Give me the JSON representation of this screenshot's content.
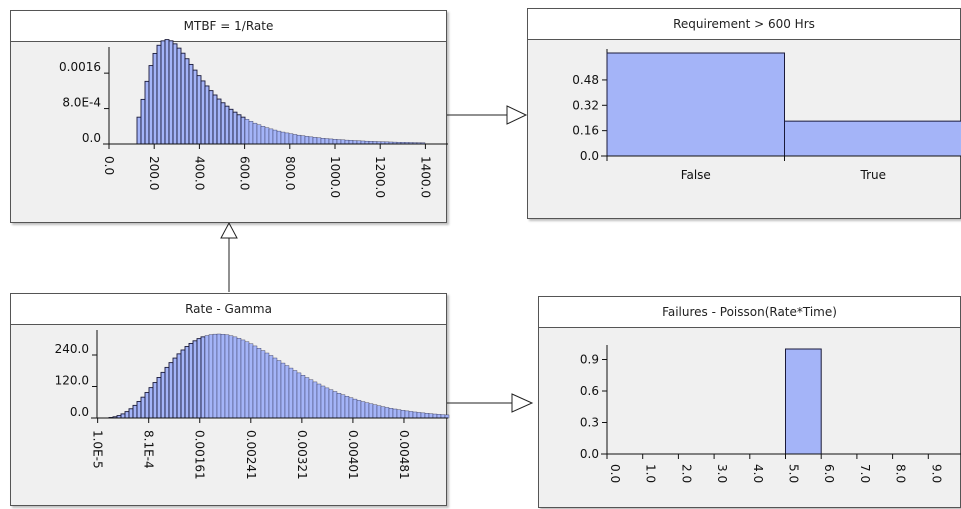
{
  "colors": {
    "bar_fill": "#a4b4f8",
    "bar_stroke": "#1a1a3a",
    "panel_bg": "#f0f0f0",
    "border": "#555555"
  },
  "nodes": {
    "mtbf": {
      "title": "MTBF = 1/Rate"
    },
    "requirement": {
      "title": "Requirement > 600 Hrs"
    },
    "rate": {
      "title": "Rate - Gamma"
    },
    "failures": {
      "title": "Failures - Poisson(Rate*Time)"
    }
  },
  "chart_data": [
    {
      "id": "mtbf",
      "type": "bar",
      "title": "MTBF = 1/Rate",
      "distribution": "inverse-gamma-like histogram",
      "x_range": [
        0,
        1500
      ],
      "y_range": [
        0,
        0.0021
      ],
      "y_ticks": [
        "0.0016",
        "8.0E-4",
        "0.0"
      ],
      "y_tick_values": [
        0.0016,
        0.0008,
        0.0
      ],
      "x_ticks": [
        "0.0",
        "200.0",
        "400.0",
        "600.0",
        "800.0",
        "1000.0",
        "1200.0",
        "1400.0"
      ],
      "x_tick_values": [
        0,
        200,
        400,
        600,
        800,
        1000,
        1200,
        1400
      ],
      "peak": {
        "x": 320,
        "y": 0.0021
      },
      "threshold": 600
    },
    {
      "id": "requirement",
      "type": "bar",
      "title": "Requirement > 600 Hrs",
      "categories": [
        "False",
        "True"
      ],
      "values": [
        0.65,
        0.22
      ],
      "y_range": [
        0,
        0.65
      ],
      "y_ticks": [
        "0.48",
        "0.32",
        "0.16",
        "0.0"
      ],
      "y_tick_values": [
        0.48,
        0.32,
        0.16,
        0.0
      ]
    },
    {
      "id": "rate",
      "type": "bar",
      "title": "Rate - Gamma",
      "distribution": "gamma histogram",
      "x_range": [
        0,
        0.0055
      ],
      "y_range": [
        0,
        320
      ],
      "y_ticks": [
        "240.0",
        "120.0",
        "0.0"
      ],
      "y_tick_values": [
        240,
        120,
        0
      ],
      "x_ticks": [
        "1.0E-5",
        "8.1E-4",
        "0.00161",
        "0.00241",
        "0.00321",
        "0.00401",
        "0.00481"
      ],
      "x_tick_values": [
        1e-05,
        0.00081,
        0.00161,
        0.00241,
        0.00321,
        0.00401,
        0.00481
      ],
      "peak": {
        "x": 0.0019,
        "y": 320
      },
      "threshold": 0.00167
    },
    {
      "id": "failures",
      "type": "bar",
      "title": "Failures - Poisson(Rate*Time)",
      "categories": [
        "0.0",
        "1.0",
        "2.0",
        "3.0",
        "4.0",
        "5.0",
        "6.0",
        "7.0",
        "8.0",
        "9.0"
      ],
      "values": [
        0,
        0,
        0,
        0,
        0,
        1.0,
        0,
        0,
        0,
        0
      ],
      "y_range": [
        0,
        1.0
      ],
      "y_ticks": [
        "0.9",
        "0.6",
        "0.3",
        "0.0"
      ],
      "y_tick_values": [
        0.9,
        0.6,
        0.3,
        0.0
      ]
    }
  ]
}
